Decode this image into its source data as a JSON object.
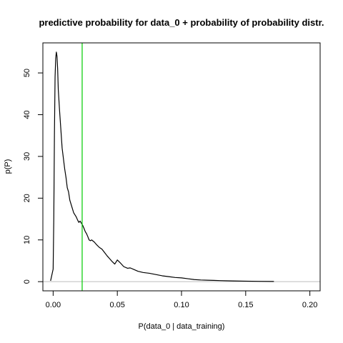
{
  "chart_data": {
    "type": "line",
    "title": "predictive probability for data_0 + probability of probability distr.",
    "xlabel": "P(data_0 | data_training)",
    "ylabel": "p(P)",
    "xlim": [
      -0.008,
      0.208
    ],
    "ylim": [
      -2.2,
      57.2
    ],
    "x_ticks": [
      0.0,
      0.05,
      0.1,
      0.15,
      0.2
    ],
    "x_tick_labels": [
      "0.00",
      "0.05",
      "0.10",
      "0.15",
      "0.20"
    ],
    "y_ticks": [
      0,
      10,
      20,
      30,
      40,
      50
    ],
    "y_tick_labels": [
      "0",
      "10",
      "20",
      "30",
      "40",
      "50"
    ],
    "grid": false,
    "colors": {
      "density_line": "#000000",
      "vertical_line": "#00cc00",
      "baseline": "#bebebe"
    },
    "vertical_line_x": 0.0226,
    "baseline_y": 0,
    "series": [
      {
        "x": [
          -0.002,
          0.0,
          0.0005,
          0.001,
          0.0015,
          0.002,
          0.0025,
          0.003,
          0.0035,
          0.004,
          0.005,
          0.006,
          0.007,
          0.008,
          0.009,
          0.01,
          0.011,
          0.012,
          0.013,
          0.014,
          0.015,
          0.016,
          0.017,
          0.018,
          0.019,
          0.02,
          0.021,
          0.022,
          0.023,
          0.024,
          0.025,
          0.026,
          0.027,
          0.028,
          0.029,
          0.03,
          0.032,
          0.034,
          0.036,
          0.038,
          0.04,
          0.042,
          0.044,
          0.046,
          0.048,
          0.05,
          0.052,
          0.055,
          0.058,
          0.06,
          0.063,
          0.066,
          0.07,
          0.075,
          0.08,
          0.085,
          0.09,
          0.095,
          0.1,
          0.105,
          0.11,
          0.115,
          0.12,
          0.125,
          0.13,
          0.14,
          0.15,
          0.16,
          0.172
        ],
        "y": [
          0.2,
          3.0,
          15.0,
          35.0,
          49.0,
          53.5,
          55.0,
          54.0,
          51.0,
          46.0,
          41.0,
          36.5,
          32.0,
          29.5,
          27.0,
          25.0,
          22.5,
          21.5,
          19.5,
          18.5,
          17.5,
          16.5,
          16.0,
          15.5,
          14.8,
          14.2,
          14.5,
          14.0,
          13.5,
          12.8,
          12.0,
          11.5,
          10.8,
          10.0,
          9.8,
          10.0,
          9.5,
          8.8,
          8.2,
          7.8,
          7.0,
          6.2,
          5.5,
          4.8,
          4.2,
          5.2,
          4.6,
          3.6,
          3.2,
          3.3,
          2.9,
          2.5,
          2.2,
          2.0,
          1.7,
          1.4,
          1.2,
          1.0,
          0.9,
          0.7,
          0.5,
          0.4,
          0.35,
          0.3,
          0.25,
          0.18,
          0.12,
          0.08,
          0.05
        ]
      }
    ]
  }
}
